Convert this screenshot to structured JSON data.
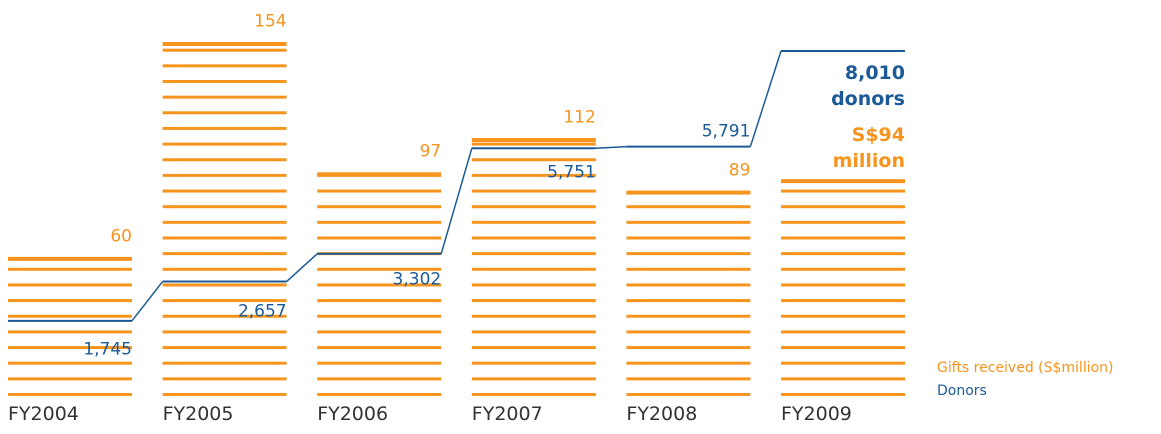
{
  "chart_data": {
    "type": "bar-line",
    "categories": [
      "FY2004",
      "FY2005",
      "FY2006",
      "FY2007",
      "FY2008",
      "FY2009"
    ],
    "series": [
      {
        "name": "Gifts received (S$million)",
        "color": "#f7941d",
        "values": [
          60,
          154,
          97,
          112,
          89,
          94
        ],
        "value_labels": [
          "60",
          "154",
          "97",
          "112",
          "89",
          "S$94 million"
        ]
      },
      {
        "name": "Donors",
        "color": "#1b5a97",
        "values": [
          1745,
          2657,
          3302,
          5751,
          5791,
          8010
        ],
        "value_labels": [
          "1,745",
          "2,657",
          "3,302",
          "5,751",
          "5,791",
          "8,010 donors"
        ]
      }
    ]
  }
}
